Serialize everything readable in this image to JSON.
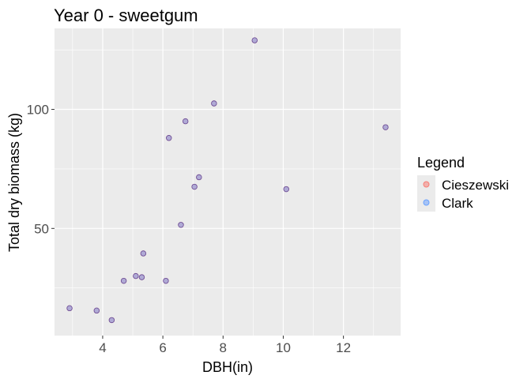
{
  "chart_data": {
    "type": "scatter",
    "title": "Year 0 - sweetgum",
    "xlabel": "DBH(in)",
    "ylabel": "Total dry biomass (kg)",
    "xlim": [
      2.4,
      13.9
    ],
    "ylim": [
      5,
      134
    ],
    "x_ticks": [
      4,
      6,
      8,
      10,
      12
    ],
    "y_ticks": [
      50,
      100
    ],
    "x_tick_labels": [
      "4",
      "6",
      "8",
      "10",
      "12"
    ],
    "y_tick_labels": [
      "50",
      "100"
    ],
    "grid": true,
    "legend": {
      "title": "Legend",
      "placement": "right",
      "entries": [
        {
          "name": "Cieszewski",
          "color": "#f8766d"
        },
        {
          "name": "Clark",
          "color": "#619cff"
        }
      ]
    },
    "point_color": "#b266dd",
    "series": [
      {
        "name": "Cieszewski",
        "points": [
          [
            2.9,
            16.5
          ],
          [
            3.8,
            15.5
          ],
          [
            4.3,
            11.5
          ],
          [
            4.7,
            28
          ],
          [
            5.1,
            30
          ],
          [
            5.3,
            29.5
          ],
          [
            5.35,
            39.5
          ],
          [
            6.1,
            28
          ],
          [
            6.2,
            88
          ],
          [
            6.6,
            51.5
          ],
          [
            6.75,
            95
          ],
          [
            7.05,
            67.5
          ],
          [
            7.2,
            71.5
          ],
          [
            7.7,
            102.5
          ],
          [
            9.05,
            129
          ],
          [
            10.1,
            66.5
          ],
          [
            13.4,
            92.5
          ]
        ]
      },
      {
        "name": "Clark",
        "points": [
          [
            2.9,
            16.5
          ],
          [
            3.8,
            15.5
          ],
          [
            4.3,
            11.5
          ],
          [
            4.7,
            28
          ],
          [
            5.1,
            30
          ],
          [
            5.3,
            29.5
          ],
          [
            5.35,
            39.5
          ],
          [
            6.1,
            28
          ],
          [
            6.2,
            88
          ],
          [
            6.6,
            51.5
          ],
          [
            6.75,
            95
          ],
          [
            7.05,
            67.5
          ],
          [
            7.2,
            71.5
          ],
          [
            7.7,
            102.5
          ],
          [
            9.05,
            129
          ],
          [
            10.1,
            66.5
          ],
          [
            13.4,
            92.5
          ]
        ]
      }
    ]
  }
}
